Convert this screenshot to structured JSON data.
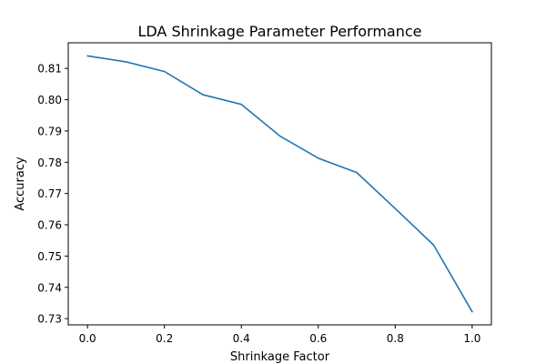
{
  "chart_data": {
    "type": "line",
    "title": "LDA Shrinkage Parameter Performance",
    "xlabel": "Shrinkage Factor",
    "ylabel": "Accuracy",
    "x": [
      0.0,
      0.1,
      0.2,
      0.3,
      0.4,
      0.5,
      0.6,
      0.7,
      0.8,
      0.9,
      1.0
    ],
    "series": [
      {
        "values": [
          0.814,
          0.8121,
          0.809,
          0.8016,
          0.7985,
          0.7884,
          0.7813,
          0.7767,
          0.7652,
          0.7535,
          0.7322
        ],
        "color": "#1f77b4"
      }
    ],
    "xlim": [
      -0.05,
      1.05
    ],
    "ylim": [
      0.728,
      0.8182
    ],
    "xticks": [
      0.0,
      0.2,
      0.4,
      0.6,
      0.8,
      1.0
    ],
    "xtick_labels": [
      "0.0",
      "0.2",
      "0.4",
      "0.6",
      "0.8",
      "1.0"
    ],
    "yticks": [
      0.73,
      0.74,
      0.75,
      0.76,
      0.77,
      0.78,
      0.79,
      0.8,
      0.81
    ],
    "ytick_labels": [
      "0.73",
      "0.74",
      "0.75",
      "0.76",
      "0.77",
      "0.78",
      "0.79",
      "0.80",
      "0.81"
    ],
    "grid": false,
    "legend": false
  }
}
